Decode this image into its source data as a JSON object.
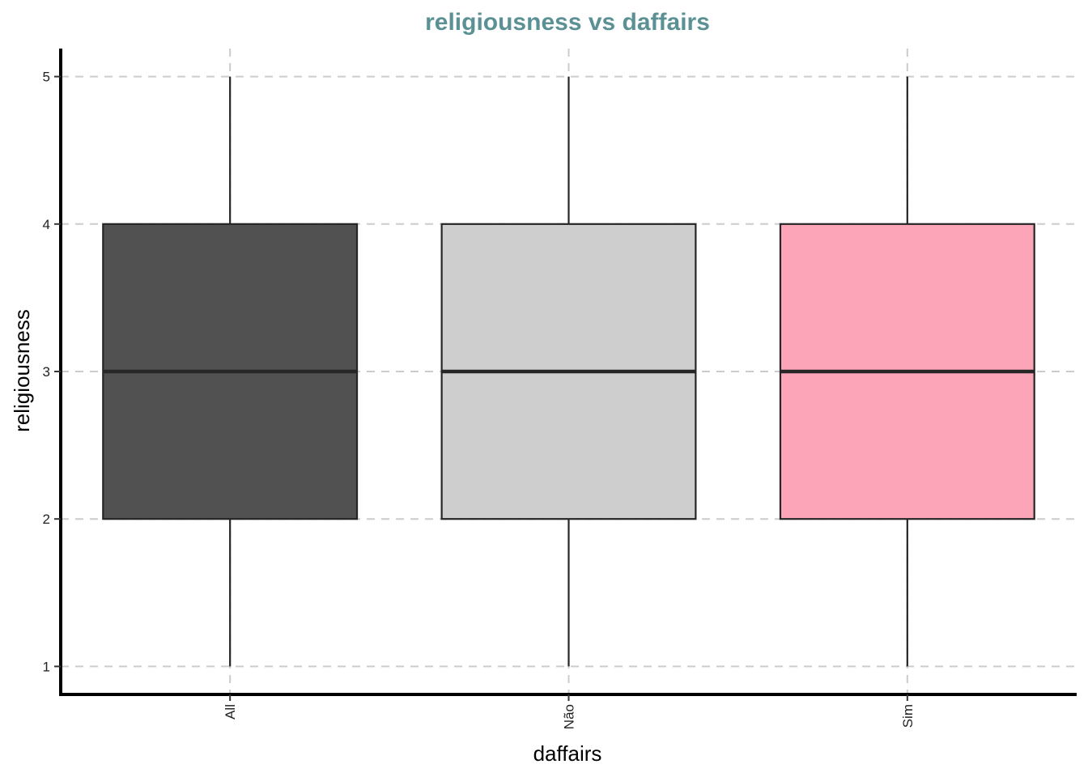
{
  "chart_data": {
    "type": "boxplot",
    "title": "religiousness vs daffairs",
    "xlabel": "daffairs",
    "ylabel": "religiousness",
    "categories": [
      "All",
      "Não",
      "Sim"
    ],
    "boxes": [
      {
        "category": "All",
        "min": 1,
        "q1": 2,
        "median": 3,
        "q3": 4,
        "max": 5,
        "fill": "#515151"
      },
      {
        "category": "Não",
        "min": 1,
        "q1": 2,
        "median": 3,
        "q3": 4,
        "max": 5,
        "fill": "#cecece"
      },
      {
        "category": "Sim",
        "min": 1,
        "q1": 2,
        "median": 3,
        "q3": 4,
        "max": 5,
        "fill": "#fca4b8"
      }
    ],
    "y_ticks": [
      1,
      2,
      3,
      4,
      5
    ],
    "ylim": [
      0.81,
      5.19
    ],
    "grid": true,
    "grid_style": "dashed",
    "colors": {
      "title": "#5b9194",
      "box_stroke": "#262626",
      "grid": "#cccccc",
      "axis": "#000000"
    }
  }
}
